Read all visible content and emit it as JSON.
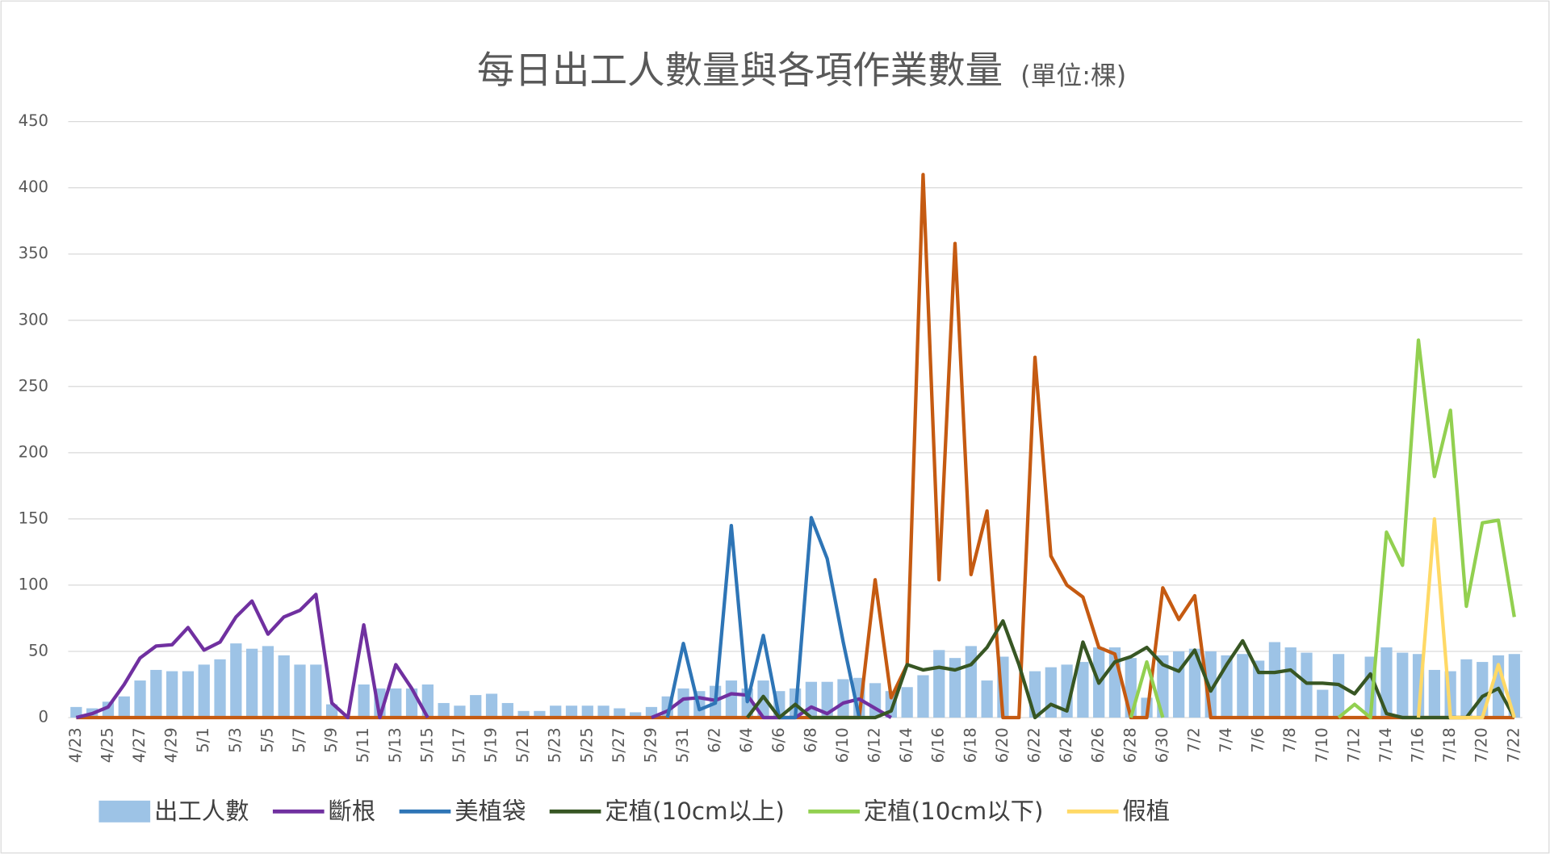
{
  "chart_data": {
    "type": "combo",
    "title": "每日出工人數量與各項作業數量",
    "unit": "(單位:棵)",
    "categories": [
      "4/23",
      null,
      "4/25",
      null,
      "4/27",
      null,
      "4/29",
      null,
      "5/1",
      null,
      "5/3",
      null,
      "5/5",
      null,
      "5/7",
      null,
      "5/9",
      null,
      "5/11",
      null,
      "5/13",
      null,
      "5/15",
      null,
      "5/17",
      null,
      "5/19",
      null,
      "5/21",
      null,
      "5/23",
      null,
      "5/25",
      null,
      "5/27",
      null,
      "5/29",
      null,
      "5/31",
      null,
      "6/2",
      null,
      "6/4",
      null,
      "6/6",
      null,
      "6/8",
      null,
      "6/10",
      null,
      "6/12",
      null,
      "6/14",
      null,
      "6/16",
      null,
      "6/18",
      null,
      "6/20",
      null,
      "6/22",
      null,
      "6/24",
      null,
      "6/26",
      null,
      "6/28",
      null,
      "6/30",
      null,
      "7/2",
      null,
      "7/4",
      null,
      "7/6",
      null,
      "7/8",
      null,
      "7/10",
      null,
      "7/12",
      null,
      "7/14",
      null,
      "7/16",
      null,
      "7/18",
      null,
      "7/20",
      null,
      "7/22"
    ],
    "ylim": [
      0,
      450
    ],
    "yticks": [
      0,
      50,
      100,
      150,
      200,
      250,
      300,
      350,
      400,
      450
    ],
    "grid": true,
    "series": [
      {
        "name": "出工人數",
        "type": "bar",
        "color": "#9dc3e6",
        "values": [
          8,
          7,
          12,
          16,
          28,
          36,
          35,
          35,
          40,
          44,
          56,
          52,
          54,
          47,
          40,
          40,
          10,
          0,
          25,
          22,
          22,
          22,
          25,
          11,
          9,
          17,
          18,
          11,
          5,
          5,
          9,
          9,
          9,
          9,
          7,
          4,
          8,
          16,
          22,
          20,
          24,
          28,
          22,
          28,
          20,
          22,
          27,
          27,
          29,
          30,
          26,
          20,
          23,
          32,
          51,
          45,
          54,
          28,
          46,
          0,
          35,
          38,
          40,
          42,
          53,
          53,
          45,
          15,
          47,
          50,
          52,
          50,
          47,
          48,
          43,
          57,
          53,
          49,
          21,
          48,
          0,
          46,
          53,
          49,
          48,
          36,
          35,
          44,
          42,
          47,
          48
        ]
      },
      {
        "type": "line",
        "color": "#c55a11",
        "values": [
          0,
          0,
          0,
          0,
          0,
          0,
          0,
          0,
          0,
          0,
          0,
          0,
          0,
          0,
          0,
          0,
          0,
          0,
          0,
          0,
          0,
          0,
          0,
          0,
          0,
          0,
          0,
          0,
          0,
          0,
          0,
          0,
          0,
          0,
          0,
          0,
          0,
          0,
          0,
          0,
          0,
          0,
          0,
          0,
          0,
          0,
          0,
          0,
          0,
          0,
          104,
          15,
          40,
          410,
          104,
          358,
          108,
          156,
          0,
          0,
          272,
          122,
          100,
          91,
          53,
          48,
          0,
          0,
          98,
          74,
          92,
          0,
          0,
          0,
          0,
          0,
          0,
          0,
          0,
          0,
          0,
          0,
          0,
          0,
          0,
          0,
          0,
          0,
          0,
          0,
          0
        ]
      },
      {
        "name": "斷根",
        "type": "line",
        "color": "#7030a0",
        "values": [
          0,
          3,
          8,
          25,
          45,
          54,
          55,
          68,
          51,
          57,
          76,
          88,
          63,
          76,
          81,
          93,
          11,
          0,
          70,
          0,
          40,
          22,
          0,
          null,
          null,
          null,
          null,
          null,
          null,
          null,
          null,
          null,
          null,
          null,
          null,
          null,
          0,
          5,
          14,
          15,
          13,
          18,
          17,
          0,
          0,
          0,
          8,
          3,
          11,
          14,
          7,
          0,
          null,
          null,
          null,
          null,
          null,
          null,
          null,
          null,
          null,
          null,
          null,
          null,
          null,
          null,
          null,
          null,
          null,
          null,
          null,
          null,
          null,
          null,
          null,
          null,
          null,
          null,
          null,
          null,
          null,
          null,
          null,
          null,
          null,
          null,
          null,
          null,
          null,
          null,
          null
        ]
      },
      {
        "name": "美植袋",
        "type": "line",
        "color": "#2e75b6",
        "values": [
          null,
          null,
          null,
          null,
          null,
          null,
          null,
          null,
          null,
          null,
          null,
          null,
          null,
          null,
          null,
          null,
          null,
          null,
          null,
          null,
          null,
          null,
          null,
          null,
          null,
          null,
          null,
          null,
          null,
          null,
          null,
          null,
          null,
          null,
          null,
          null,
          null,
          0,
          56,
          6,
          11,
          145,
          12,
          62,
          0,
          0,
          151,
          120,
          57,
          0,
          null,
          null,
          null,
          null,
          null,
          null,
          null,
          null,
          null,
          null,
          null,
          null,
          null,
          null,
          null,
          null,
          null,
          null,
          null,
          null,
          null,
          null,
          null,
          null,
          null,
          null,
          null,
          null,
          null,
          null,
          null,
          null,
          null,
          null,
          null,
          null,
          null,
          null,
          null,
          null,
          null
        ]
      },
      {
        "name": "定植(10cm以上)",
        "type": "line",
        "color": "#375623",
        "values": [
          null,
          null,
          null,
          null,
          null,
          null,
          null,
          null,
          null,
          null,
          null,
          null,
          null,
          null,
          null,
          null,
          null,
          null,
          null,
          null,
          null,
          null,
          null,
          null,
          null,
          null,
          null,
          null,
          null,
          null,
          null,
          null,
          null,
          null,
          null,
          null,
          null,
          null,
          null,
          null,
          null,
          null,
          0,
          16,
          0,
          10,
          0,
          0,
          0,
          0,
          0,
          5,
          40,
          36,
          38,
          36,
          40,
          53,
          73,
          40,
          0,
          10,
          5,
          57,
          26,
          42,
          46,
          53,
          40,
          35,
          51,
          20,
          40,
          58,
          34,
          34,
          36,
          26,
          26,
          25,
          18,
          33,
          3,
          0,
          0,
          0,
          0,
          0,
          16,
          22,
          0
        ]
      },
      {
        "name": "定植(10cm以下)",
        "type": "line",
        "color": "#92d050",
        "values": [
          null,
          null,
          null,
          null,
          null,
          null,
          null,
          null,
          null,
          null,
          null,
          null,
          null,
          null,
          null,
          null,
          null,
          null,
          null,
          null,
          null,
          null,
          null,
          null,
          null,
          null,
          null,
          null,
          null,
          null,
          null,
          null,
          null,
          null,
          null,
          null,
          null,
          null,
          null,
          null,
          null,
          null,
          null,
          null,
          null,
          null,
          null,
          null,
          null,
          null,
          null,
          null,
          null,
          null,
          null,
          null,
          null,
          null,
          null,
          null,
          null,
          null,
          null,
          null,
          null,
          null,
          0,
          42,
          0,
          null,
          null,
          null,
          null,
          null,
          null,
          null,
          null,
          null,
          null,
          0,
          10,
          0,
          140,
          115,
          285,
          182,
          232,
          84,
          147,
          149,
          76
        ]
      },
      {
        "name": "假植",
        "type": "line",
        "color": "#ffd966",
        "values": [
          null,
          null,
          null,
          null,
          null,
          null,
          null,
          null,
          null,
          null,
          null,
          null,
          null,
          null,
          null,
          null,
          null,
          null,
          null,
          null,
          null,
          null,
          null,
          null,
          null,
          null,
          null,
          null,
          null,
          null,
          null,
          null,
          null,
          null,
          null,
          null,
          null,
          null,
          null,
          null,
          null,
          null,
          null,
          null,
          null,
          null,
          null,
          null,
          null,
          null,
          null,
          null,
          null,
          null,
          null,
          null,
          null,
          null,
          null,
          null,
          null,
          null,
          null,
          null,
          null,
          null,
          null,
          null,
          null,
          null,
          null,
          null,
          null,
          null,
          null,
          null,
          null,
          null,
          null,
          null,
          null,
          null,
          null,
          null,
          0,
          150,
          0,
          0,
          0,
          40,
          0
        ]
      }
    ]
  }
}
